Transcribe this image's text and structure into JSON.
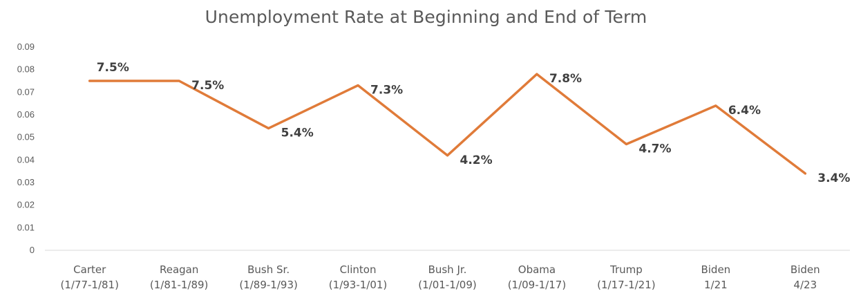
{
  "chart_data": {
    "type": "line",
    "title": "Unemployment Rate at Beginning and End of Term",
    "categories": [
      [
        "Carter",
        "(1/77-1/81)"
      ],
      [
        "Reagan",
        "(1/81-1/89)"
      ],
      [
        "Bush Sr.",
        "(1/89-1/93)"
      ],
      [
        "Clinton",
        "(1/93-1/01)"
      ],
      [
        "Bush Jr.",
        "(1/01-1/09)"
      ],
      [
        "Obama",
        "(1/09-1/17)"
      ],
      [
        "Trump",
        "(1/17-1/21)"
      ],
      [
        "Biden",
        "1/21"
      ],
      [
        "Biden",
        "4/23"
      ]
    ],
    "values": [
      0.075,
      0.075,
      0.054,
      0.073,
      0.042,
      0.078,
      0.047,
      0.064,
      0.034
    ],
    "data_labels": [
      "7.5%",
      "7.5%",
      "5.4%",
      "7.3%",
      "4.2%",
      "7.8%",
      "4.7%",
      "6.4%",
      "3.4%"
    ],
    "ylim": [
      0,
      0.09
    ],
    "yticks": [
      "0",
      "0.01",
      "0.02",
      "0.03",
      "0.04",
      "0.05",
      "0.06",
      "0.07",
      "0.08",
      "0.09"
    ],
    "xlabel": "",
    "ylabel": "",
    "grid": false,
    "legend": "none",
    "line_color": "#E07B39"
  }
}
